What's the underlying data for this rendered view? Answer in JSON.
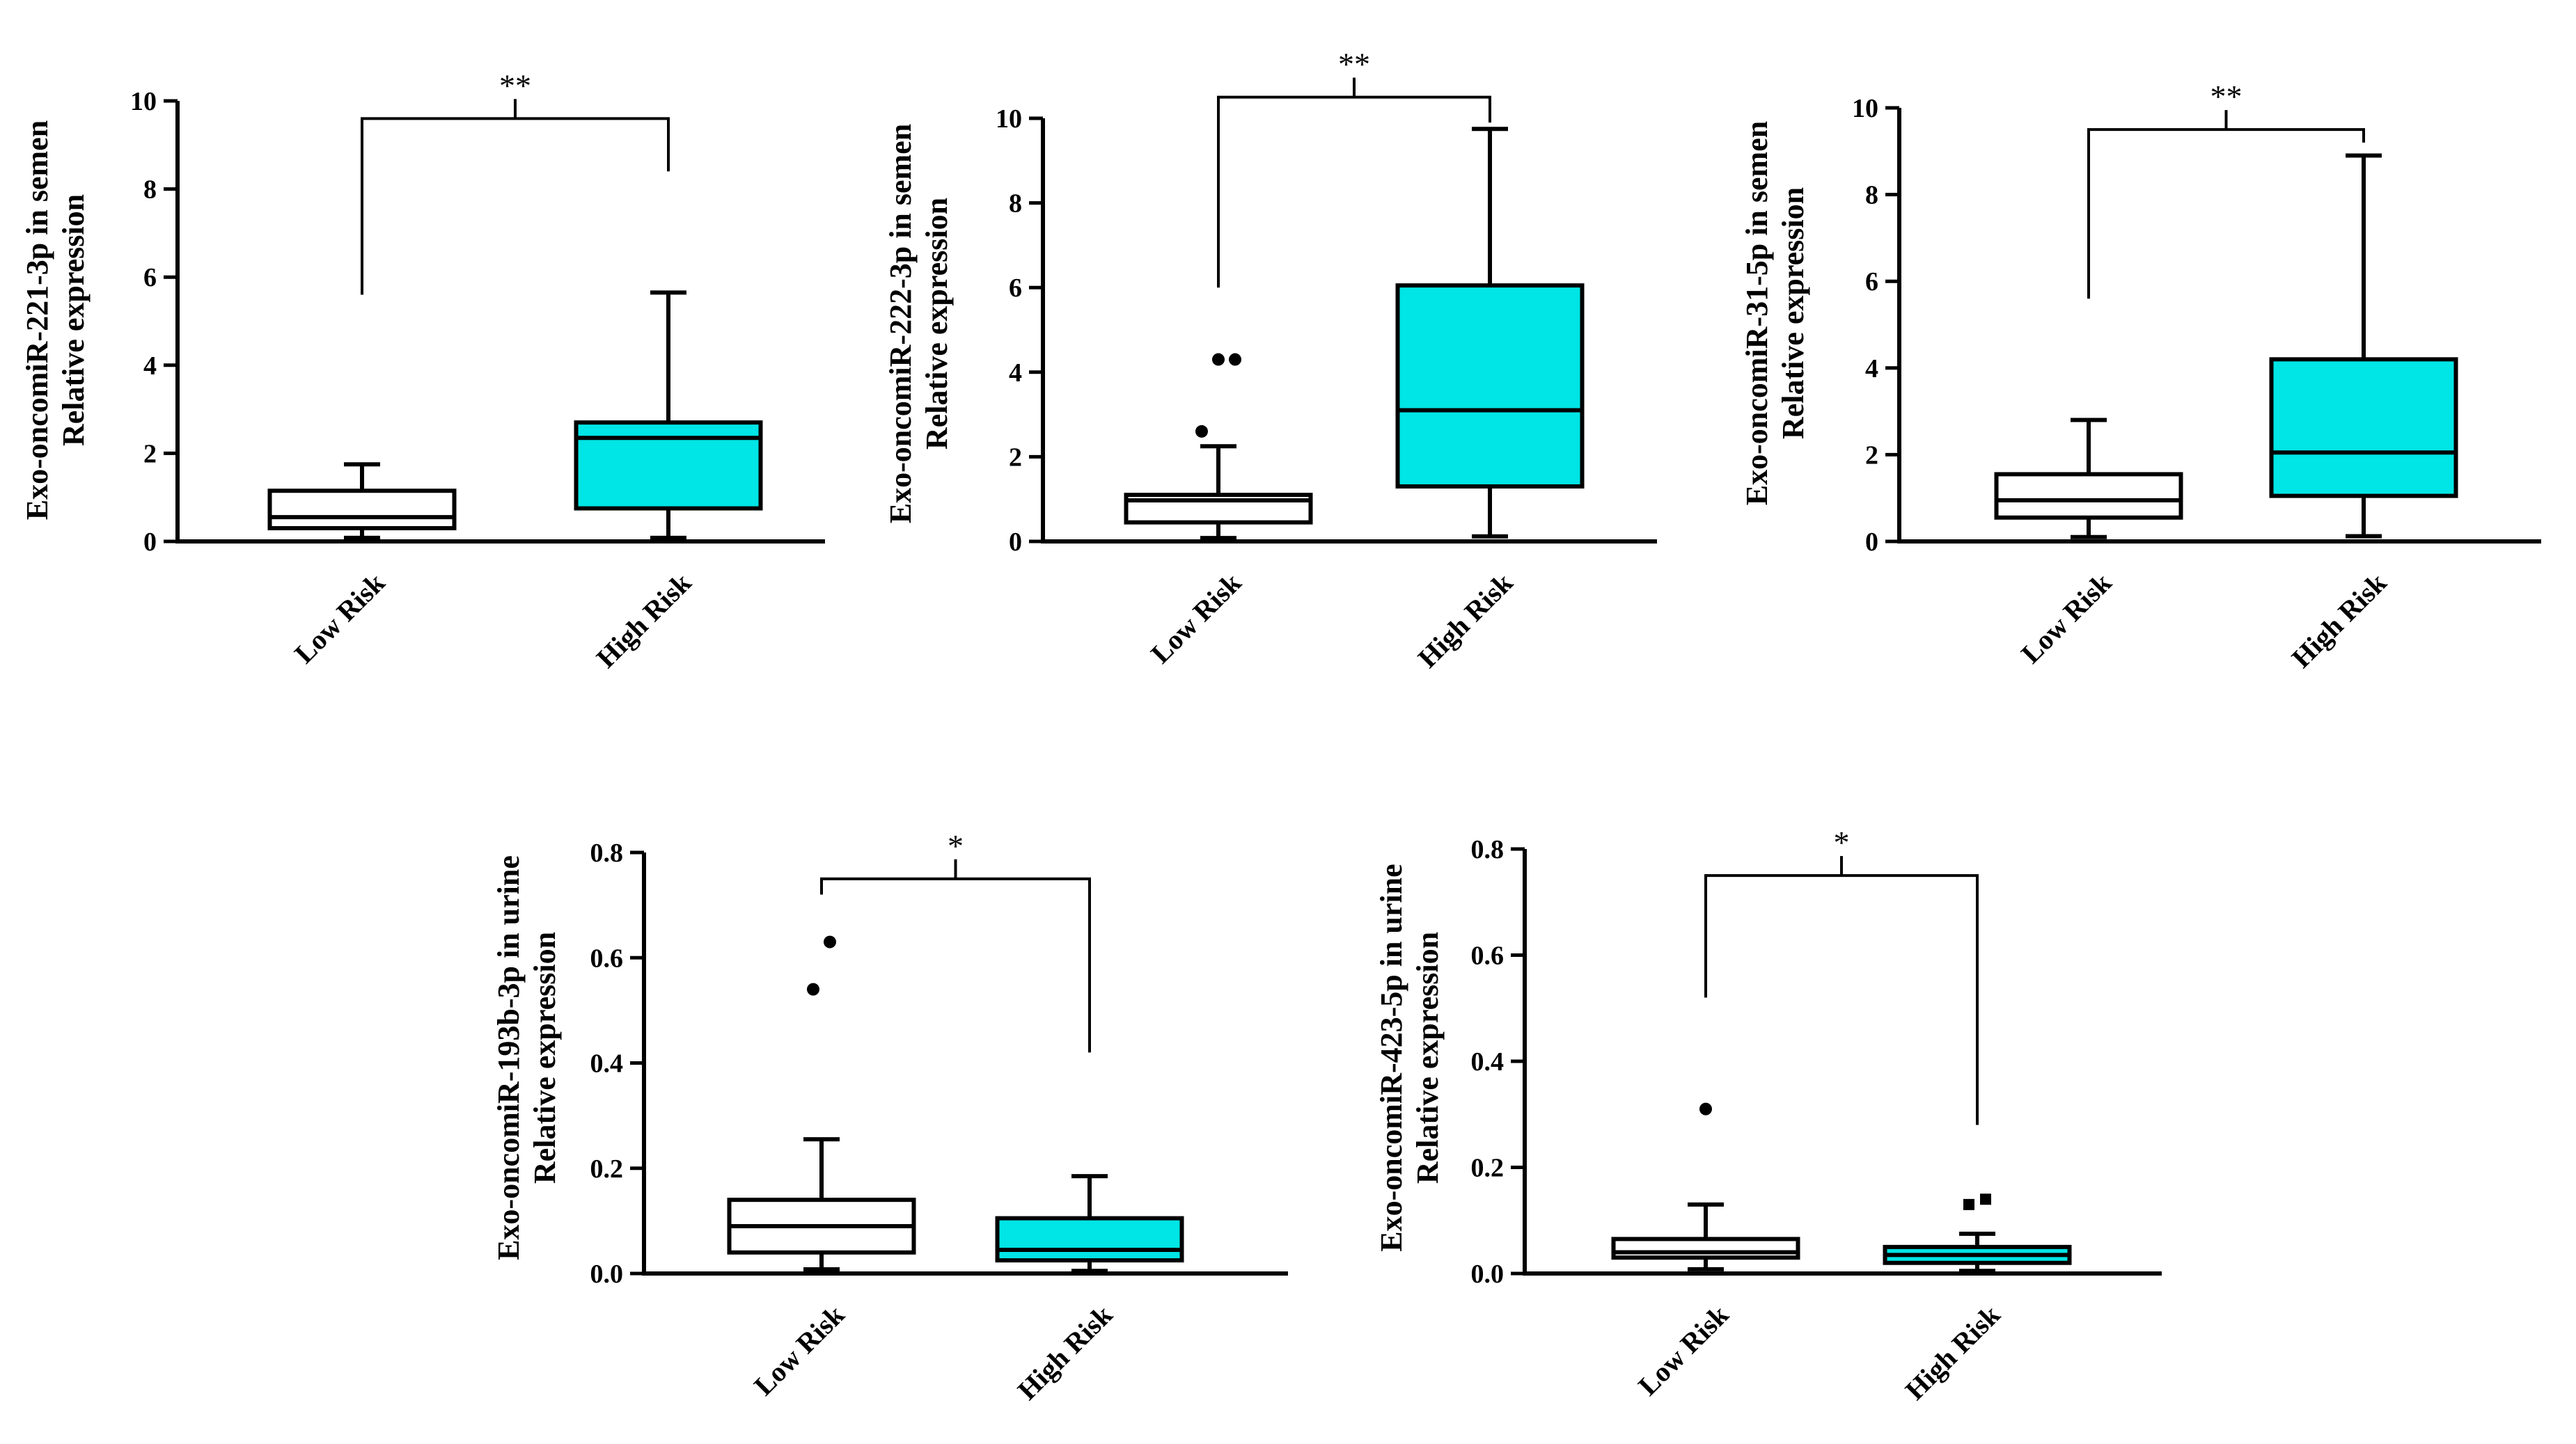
{
  "figure": {
    "colors": {
      "low_fill": "#ffffff",
      "high_fill": "#00e5e5",
      "stroke": "#000000"
    }
  },
  "chart_data": [
    {
      "type": "box",
      "title": "",
      "ylabel_lines": [
        "Exo-oncomiR-221-3p in semen",
        "Relative expression"
      ],
      "xlabel": "",
      "categories": [
        "Low Risk",
        "High Risk"
      ],
      "ylim": [
        0,
        10
      ],
      "yticks": [
        0,
        2,
        4,
        6,
        8,
        10
      ],
      "tick_decimals": 0,
      "boxes": [
        {
          "category": "Low Risk",
          "whisker_low": 0.08,
          "q1": 0.3,
          "median": 0.55,
          "q3": 1.15,
          "whisker_high": 1.75,
          "outliers": []
        },
        {
          "category": "High Risk",
          "whisker_low": 0.08,
          "q1": 0.75,
          "median": 2.35,
          "q3": 2.7,
          "whisker_high": 5.65,
          "outliers": []
        }
      ],
      "significance": {
        "label": "**",
        "bracket_y": 9.6,
        "left_leg_bottom": 5.6,
        "right_leg_bottom": 8.4
      }
    },
    {
      "type": "box",
      "title": "",
      "ylabel_lines": [
        "Exo-oncomiR-222-3p in semen",
        "Relative expression"
      ],
      "xlabel": "",
      "categories": [
        "Low Risk",
        "High Risk"
      ],
      "ylim": [
        0,
        10
      ],
      "yticks": [
        0,
        2,
        4,
        6,
        8,
        10
      ],
      "tick_decimals": 0,
      "boxes": [
        {
          "category": "Low Risk",
          "whisker_low": 0.08,
          "q1": 0.45,
          "median": 0.97,
          "q3": 1.1,
          "whisker_high": 2.25,
          "outliers": [
            2.6,
            4.3,
            4.3
          ]
        },
        {
          "category": "High Risk",
          "whisker_low": 0.12,
          "q1": 1.3,
          "median": 3.1,
          "q3": 6.05,
          "whisker_high": 9.75,
          "outliers": []
        }
      ],
      "significance": {
        "label": "**",
        "bracket_y": 10.5,
        "left_leg_bottom": 6.0,
        "right_leg_bottom": 9.9
      }
    },
    {
      "type": "box",
      "title": "",
      "ylabel_lines": [
        "Exo-oncomiR-31-5p in semen",
        "Relative expression"
      ],
      "xlabel": "",
      "categories": [
        "Low Risk",
        "High Risk"
      ],
      "ylim": [
        0,
        10
      ],
      "yticks": [
        0,
        2,
        4,
        6,
        8,
        10
      ],
      "tick_decimals": 0,
      "boxes": [
        {
          "category": "Low Risk",
          "whisker_low": 0.1,
          "q1": 0.55,
          "median": 0.95,
          "q3": 1.55,
          "whisker_high": 2.8,
          "outliers": []
        },
        {
          "category": "High Risk",
          "whisker_low": 0.12,
          "q1": 1.05,
          "median": 2.05,
          "q3": 4.2,
          "whisker_high": 8.9,
          "outliers": []
        }
      ],
      "significance": {
        "label": "**",
        "bracket_y": 9.5,
        "left_leg_bottom": 5.6,
        "right_leg_bottom": 9.2
      }
    },
    {
      "type": "box",
      "title": "",
      "ylabel_lines": [
        "Exo-oncomiR-193b-3p in urine",
        "Relative expression"
      ],
      "xlabel": "",
      "categories": [
        "Low Risk",
        "High Risk"
      ],
      "ylim": [
        0,
        0.8
      ],
      "yticks": [
        0,
        0.2,
        0.4,
        0.6,
        0.8
      ],
      "tick_decimals": 1,
      "boxes": [
        {
          "category": "Low Risk",
          "whisker_low": 0.008,
          "q1": 0.04,
          "median": 0.09,
          "q3": 0.14,
          "whisker_high": 0.255,
          "outliers": [
            0.54,
            0.63
          ]
        },
        {
          "category": "High Risk",
          "whisker_low": 0.005,
          "q1": 0.025,
          "median": 0.045,
          "q3": 0.105,
          "whisker_high": 0.185,
          "outliers": []
        }
      ],
      "significance": {
        "label": "*",
        "bracket_y": 0.75,
        "left_leg_bottom": 0.72,
        "right_leg_bottom": 0.42
      }
    },
    {
      "type": "box",
      "title": "",
      "ylabel_lines": [
        "Exo-oncomiR-423-5p in urine",
        "Relative expression"
      ],
      "xlabel": "",
      "categories": [
        "Low Risk",
        "High Risk"
      ],
      "ylim": [
        0,
        0.8
      ],
      "yticks": [
        0,
        0.2,
        0.4,
        0.6,
        0.8
      ],
      "tick_decimals": 1,
      "boxes": [
        {
          "category": "Low Risk",
          "whisker_low": 0.008,
          "q1": 0.03,
          "median": 0.04,
          "q3": 0.065,
          "whisker_high": 0.13,
          "outliers": [
            0.31
          ]
        },
        {
          "category": "High Risk",
          "whisker_low": 0.005,
          "q1": 0.02,
          "median": 0.035,
          "q3": 0.05,
          "whisker_high": 0.075,
          "outliers": [
            0.13,
            0.14
          ]
        }
      ],
      "significance": {
        "label": "*",
        "bracket_y": 0.75,
        "left_leg_bottom": 0.52,
        "right_leg_bottom": 0.28
      }
    }
  ]
}
